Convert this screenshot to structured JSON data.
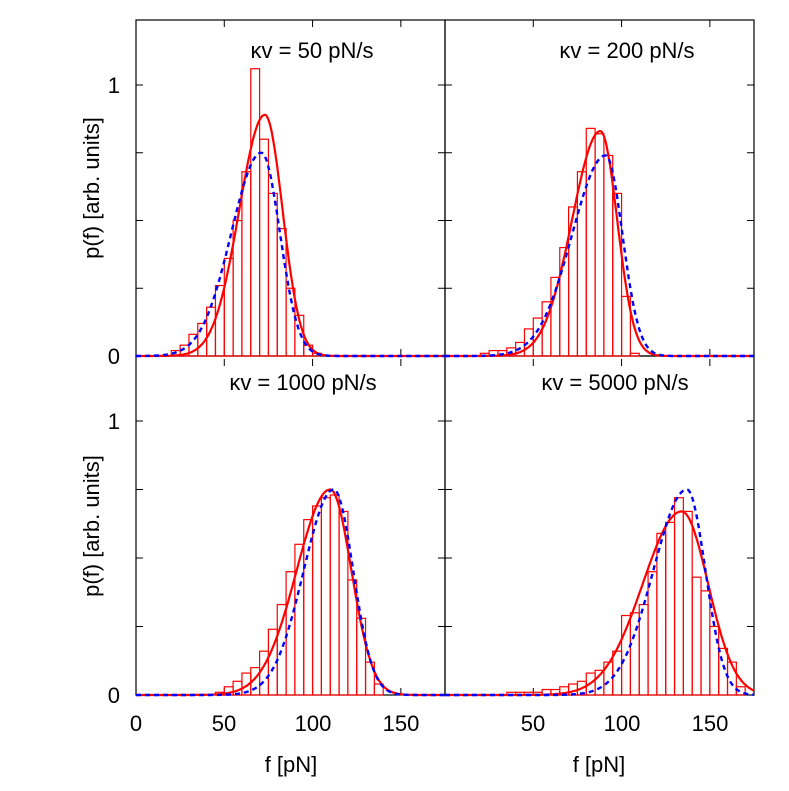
{
  "figure": {
    "ylabel": "p(f)  [arb. units]",
    "xlabel": "f  [pN]",
    "y_ticks": [
      "0",
      "1"
    ],
    "x_ticks_left": [
      "0",
      "50",
      "100",
      "150"
    ],
    "x_ticks_right": [
      "50",
      "100",
      "150"
    ]
  },
  "colors": {
    "histogram": "#ff0000",
    "fit_solid": "#ff0000",
    "fit_dashed": "#0000ff",
    "fit_under": "#00a000",
    "frame": "#000000"
  },
  "chart_data": [
    {
      "type": "bar",
      "panel": "top-left",
      "title": "κv = 50 pN/s",
      "xlim": [
        0,
        175
      ],
      "ylim": [
        0,
        1.22
      ],
      "histogram": {
        "bin_width": 5,
        "bin_starts": [
          20,
          25,
          30,
          35,
          40,
          45,
          50,
          55,
          60,
          65,
          70,
          75,
          80,
          85,
          90,
          95,
          100
        ],
        "values": [
          0.02,
          0.04,
          0.08,
          0.12,
          0.18,
          0.26,
          0.36,
          0.5,
          0.68,
          1.06,
          0.8,
          0.6,
          0.47,
          0.25,
          0.15,
          0.04,
          0.01
        ]
      },
      "series": [
        {
          "style": "solid",
          "peak_x": 73,
          "peak_y": 0.89,
          "width_left": 14.5,
          "width_right": 10
        },
        {
          "style": "dashed",
          "peak_x": 71,
          "peak_y": 0.75,
          "width_left": 17,
          "width_right": 10.5
        }
      ]
    },
    {
      "type": "bar",
      "panel": "top-right",
      "title": "κv = 200 pN/s",
      "xlim": [
        0,
        175
      ],
      "ylim": [
        0,
        1.22
      ],
      "histogram": {
        "bin_width": 5,
        "bin_starts": [
          20,
          25,
          30,
          35,
          40,
          45,
          50,
          55,
          60,
          65,
          70,
          75,
          80,
          85,
          90,
          95,
          100,
          105
        ],
        "values": [
          0.01,
          0.02,
          0.02,
          0.03,
          0.05,
          0.1,
          0.14,
          0.2,
          0.29,
          0.4,
          0.55,
          0.68,
          0.84,
          0.82,
          0.74,
          0.6,
          0.22,
          0.01
        ]
      },
      "series": [
        {
          "style": "solid",
          "peak_x": 88,
          "peak_y": 0.83,
          "width_left": 16,
          "width_right": 9.5
        },
        {
          "style": "dashed",
          "peak_x": 91,
          "peak_y": 0.74,
          "width_left": 19,
          "width_right": 9.5
        }
      ]
    },
    {
      "type": "bar",
      "panel": "bottom-left",
      "title": "κv = 1000 pN/s",
      "xlim": [
        0,
        175
      ],
      "ylim": [
        0,
        1.22
      ],
      "histogram": {
        "bin_width": 5,
        "bin_starts": [
          45,
          50,
          55,
          60,
          65,
          70,
          75,
          80,
          85,
          90,
          95,
          100,
          105,
          110,
          115,
          120,
          125,
          130,
          135
        ],
        "values": [
          0.01,
          0.03,
          0.05,
          0.08,
          0.1,
          0.16,
          0.24,
          0.33,
          0.45,
          0.55,
          0.64,
          0.69,
          0.72,
          0.73,
          0.67,
          0.42,
          0.28,
          0.12,
          0.04
        ]
      },
      "series": [
        {
          "style": "solid",
          "peak_x": 110,
          "peak_y": 0.75,
          "width_left": 19,
          "width_right": 12
        },
        {
          "style": "dashed",
          "peak_x": 112,
          "peak_y": 0.75,
          "width_left": 17,
          "width_right": 11
        }
      ]
    },
    {
      "type": "bar",
      "panel": "bottom-right",
      "title": "κv = 5000 pN/s",
      "xlim": [
        0,
        175
      ],
      "ylim": [
        0,
        1.22
      ],
      "histogram": {
        "bin_width": 5,
        "bin_starts": [
          35,
          40,
          45,
          50,
          55,
          60,
          65,
          70,
          75,
          80,
          85,
          90,
          95,
          100,
          105,
          110,
          115,
          120,
          125,
          130,
          135,
          140,
          145,
          150,
          155,
          160,
          165
        ],
        "values": [
          0.01,
          0.01,
          0.01,
          0.01,
          0.02,
          0.02,
          0.03,
          0.04,
          0.05,
          0.08,
          0.09,
          0.12,
          0.16,
          0.29,
          0.3,
          0.33,
          0.45,
          0.59,
          0.63,
          0.72,
          0.67,
          0.43,
          0.38,
          0.25,
          0.17,
          0.12,
          0.03
        ]
      },
      "series": [
        {
          "style": "solid",
          "peak_x": 134,
          "peak_y": 0.67,
          "width_left": 22,
          "width_right": 15
        },
        {
          "style": "dashed",
          "peak_x": 137,
          "peak_y": 0.75,
          "width_left": 19,
          "width_right": 10.5
        }
      ]
    }
  ]
}
